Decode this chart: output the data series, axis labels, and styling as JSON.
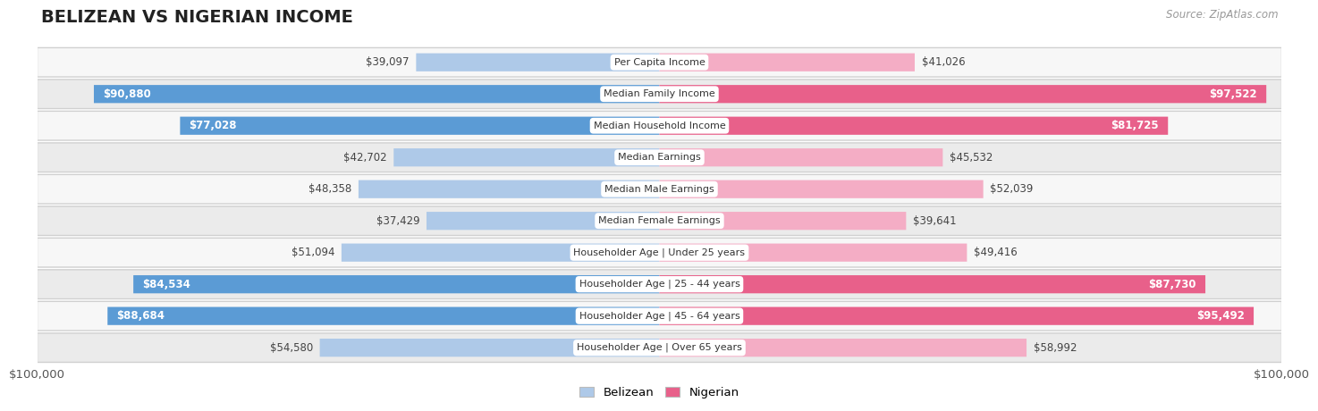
{
  "title": "BELIZEAN VS NIGERIAN INCOME",
  "source": "Source: ZipAtlas.com",
  "categories": [
    "Per Capita Income",
    "Median Family Income",
    "Median Household Income",
    "Median Earnings",
    "Median Male Earnings",
    "Median Female Earnings",
    "Householder Age | Under 25 years",
    "Householder Age | 25 - 44 years",
    "Householder Age | 45 - 64 years",
    "Householder Age | Over 65 years"
  ],
  "belizean_values": [
    39097,
    90880,
    77028,
    42702,
    48358,
    37429,
    51094,
    84534,
    88684,
    54580
  ],
  "nigerian_values": [
    41026,
    97522,
    81725,
    45532,
    52039,
    39641,
    49416,
    87730,
    95492,
    58992
  ],
  "belizean_labels": [
    "$39,097",
    "$90,880",
    "$77,028",
    "$42,702",
    "$48,358",
    "$37,429",
    "$51,094",
    "$84,534",
    "$88,684",
    "$54,580"
  ],
  "nigerian_labels": [
    "$41,026",
    "$97,522",
    "$81,725",
    "$45,532",
    "$52,039",
    "$39,641",
    "$49,416",
    "$87,730",
    "$95,492",
    "$58,992"
  ],
  "max_value": 100000,
  "belizean_color_strong": "#5b9bd5",
  "belizean_color_light": "#aec9e8",
  "nigerian_color_strong": "#e8608a",
  "nigerian_color_light": "#f4adc5",
  "row_bg_color_odd": "#f7f7f7",
  "row_bg_color_even": "#ebebeb",
  "row_border_color": "#d0d0d0",
  "legend_belizean": "Belizean",
  "legend_nigerian": "Nigerian",
  "belizean_threshold": 60000,
  "nigerian_threshold": 60000,
  "label_fontsize": 8.5,
  "cat_fontsize": 8.0
}
